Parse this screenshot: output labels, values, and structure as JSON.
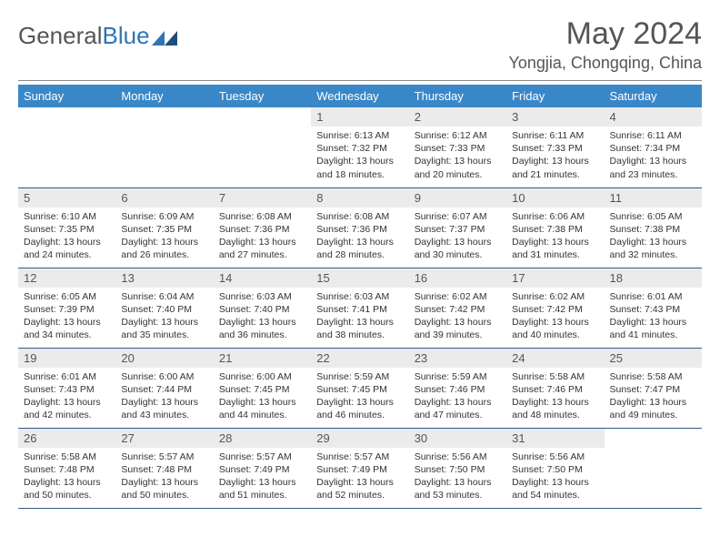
{
  "brand": {
    "part1": "General",
    "part2": "Blue"
  },
  "title": "May 2024",
  "location": "Yongjia, Chongqing, China",
  "colors": {
    "header_bg": "#3a87c8",
    "daynum_bg": "#ebebeb",
    "row_border": "#2e5c8a",
    "brand_blue": "#2e75b6",
    "text": "#555555"
  },
  "weekdays": [
    "Sunday",
    "Monday",
    "Tuesday",
    "Wednesday",
    "Thursday",
    "Friday",
    "Saturday"
  ],
  "weeks": [
    [
      {
        "n": "",
        "sr": "",
        "ss": "",
        "dl": ""
      },
      {
        "n": "",
        "sr": "",
        "ss": "",
        "dl": ""
      },
      {
        "n": "",
        "sr": "",
        "ss": "",
        "dl": ""
      },
      {
        "n": "1",
        "sr": "Sunrise: 6:13 AM",
        "ss": "Sunset: 7:32 PM",
        "dl": "Daylight: 13 hours and 18 minutes."
      },
      {
        "n": "2",
        "sr": "Sunrise: 6:12 AM",
        "ss": "Sunset: 7:33 PM",
        "dl": "Daylight: 13 hours and 20 minutes."
      },
      {
        "n": "3",
        "sr": "Sunrise: 6:11 AM",
        "ss": "Sunset: 7:33 PM",
        "dl": "Daylight: 13 hours and 21 minutes."
      },
      {
        "n": "4",
        "sr": "Sunrise: 6:11 AM",
        "ss": "Sunset: 7:34 PM",
        "dl": "Daylight: 13 hours and 23 minutes."
      }
    ],
    [
      {
        "n": "5",
        "sr": "Sunrise: 6:10 AM",
        "ss": "Sunset: 7:35 PM",
        "dl": "Daylight: 13 hours and 24 minutes."
      },
      {
        "n": "6",
        "sr": "Sunrise: 6:09 AM",
        "ss": "Sunset: 7:35 PM",
        "dl": "Daylight: 13 hours and 26 minutes."
      },
      {
        "n": "7",
        "sr": "Sunrise: 6:08 AM",
        "ss": "Sunset: 7:36 PM",
        "dl": "Daylight: 13 hours and 27 minutes."
      },
      {
        "n": "8",
        "sr": "Sunrise: 6:08 AM",
        "ss": "Sunset: 7:36 PM",
        "dl": "Daylight: 13 hours and 28 minutes."
      },
      {
        "n": "9",
        "sr": "Sunrise: 6:07 AM",
        "ss": "Sunset: 7:37 PM",
        "dl": "Daylight: 13 hours and 30 minutes."
      },
      {
        "n": "10",
        "sr": "Sunrise: 6:06 AM",
        "ss": "Sunset: 7:38 PM",
        "dl": "Daylight: 13 hours and 31 minutes."
      },
      {
        "n": "11",
        "sr": "Sunrise: 6:05 AM",
        "ss": "Sunset: 7:38 PM",
        "dl": "Daylight: 13 hours and 32 minutes."
      }
    ],
    [
      {
        "n": "12",
        "sr": "Sunrise: 6:05 AM",
        "ss": "Sunset: 7:39 PM",
        "dl": "Daylight: 13 hours and 34 minutes."
      },
      {
        "n": "13",
        "sr": "Sunrise: 6:04 AM",
        "ss": "Sunset: 7:40 PM",
        "dl": "Daylight: 13 hours and 35 minutes."
      },
      {
        "n": "14",
        "sr": "Sunrise: 6:03 AM",
        "ss": "Sunset: 7:40 PM",
        "dl": "Daylight: 13 hours and 36 minutes."
      },
      {
        "n": "15",
        "sr": "Sunrise: 6:03 AM",
        "ss": "Sunset: 7:41 PM",
        "dl": "Daylight: 13 hours and 38 minutes."
      },
      {
        "n": "16",
        "sr": "Sunrise: 6:02 AM",
        "ss": "Sunset: 7:42 PM",
        "dl": "Daylight: 13 hours and 39 minutes."
      },
      {
        "n": "17",
        "sr": "Sunrise: 6:02 AM",
        "ss": "Sunset: 7:42 PM",
        "dl": "Daylight: 13 hours and 40 minutes."
      },
      {
        "n": "18",
        "sr": "Sunrise: 6:01 AM",
        "ss": "Sunset: 7:43 PM",
        "dl": "Daylight: 13 hours and 41 minutes."
      }
    ],
    [
      {
        "n": "19",
        "sr": "Sunrise: 6:01 AM",
        "ss": "Sunset: 7:43 PM",
        "dl": "Daylight: 13 hours and 42 minutes."
      },
      {
        "n": "20",
        "sr": "Sunrise: 6:00 AM",
        "ss": "Sunset: 7:44 PM",
        "dl": "Daylight: 13 hours and 43 minutes."
      },
      {
        "n": "21",
        "sr": "Sunrise: 6:00 AM",
        "ss": "Sunset: 7:45 PM",
        "dl": "Daylight: 13 hours and 44 minutes."
      },
      {
        "n": "22",
        "sr": "Sunrise: 5:59 AM",
        "ss": "Sunset: 7:45 PM",
        "dl": "Daylight: 13 hours and 46 minutes."
      },
      {
        "n": "23",
        "sr": "Sunrise: 5:59 AM",
        "ss": "Sunset: 7:46 PM",
        "dl": "Daylight: 13 hours and 47 minutes."
      },
      {
        "n": "24",
        "sr": "Sunrise: 5:58 AM",
        "ss": "Sunset: 7:46 PM",
        "dl": "Daylight: 13 hours and 48 minutes."
      },
      {
        "n": "25",
        "sr": "Sunrise: 5:58 AM",
        "ss": "Sunset: 7:47 PM",
        "dl": "Daylight: 13 hours and 49 minutes."
      }
    ],
    [
      {
        "n": "26",
        "sr": "Sunrise: 5:58 AM",
        "ss": "Sunset: 7:48 PM",
        "dl": "Daylight: 13 hours and 50 minutes."
      },
      {
        "n": "27",
        "sr": "Sunrise: 5:57 AM",
        "ss": "Sunset: 7:48 PM",
        "dl": "Daylight: 13 hours and 50 minutes."
      },
      {
        "n": "28",
        "sr": "Sunrise: 5:57 AM",
        "ss": "Sunset: 7:49 PM",
        "dl": "Daylight: 13 hours and 51 minutes."
      },
      {
        "n": "29",
        "sr": "Sunrise: 5:57 AM",
        "ss": "Sunset: 7:49 PM",
        "dl": "Daylight: 13 hours and 52 minutes."
      },
      {
        "n": "30",
        "sr": "Sunrise: 5:56 AM",
        "ss": "Sunset: 7:50 PM",
        "dl": "Daylight: 13 hours and 53 minutes."
      },
      {
        "n": "31",
        "sr": "Sunrise: 5:56 AM",
        "ss": "Sunset: 7:50 PM",
        "dl": "Daylight: 13 hours and 54 minutes."
      },
      {
        "n": "",
        "sr": "",
        "ss": "",
        "dl": ""
      }
    ]
  ]
}
